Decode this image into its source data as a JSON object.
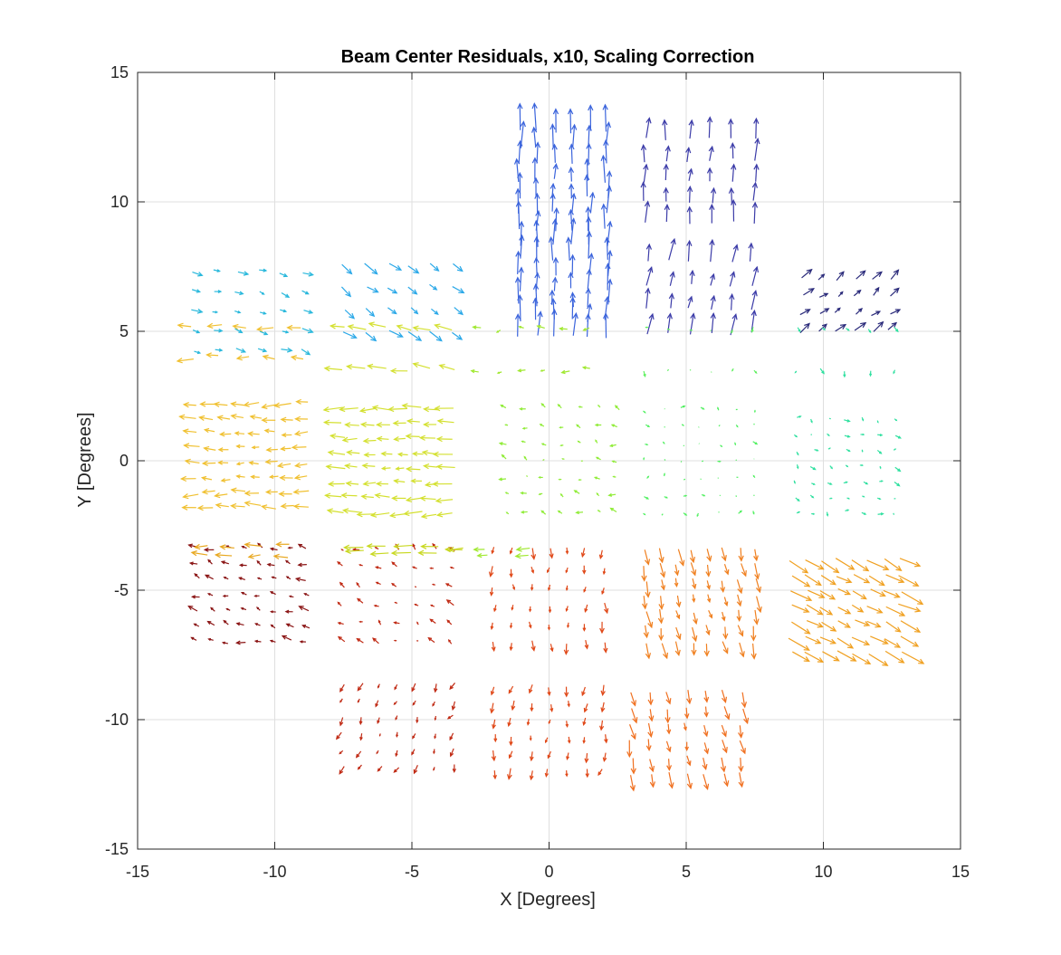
{
  "chart_data": {
    "type": "quiver",
    "title": "Beam Center Residuals, x10, Scaling Correction",
    "xlabel": "X [Degrees]",
    "ylabel": "Y [Degrees]",
    "xlim": [
      -15,
      15
    ],
    "ylim": [
      -15,
      15
    ],
    "xticks": [
      -15,
      -10,
      -5,
      0,
      5,
      10,
      15
    ],
    "yticks": [
      -15,
      -10,
      -5,
      0,
      5,
      10,
      15
    ],
    "xtick_labels": [
      "-15",
      "-10",
      "-5",
      "0",
      "5",
      "10",
      "15"
    ],
    "ytick_labels": [
      "-15",
      "-10",
      "-5",
      "0",
      "5",
      "10",
      "15"
    ],
    "grid": true,
    "scale_factor": 10,
    "beams": [
      {
        "center": [
          0.5,
          10.5
        ],
        "half": [
          1.6,
          2.2
        ],
        "color": "#3b64dc",
        "u": 0.02,
        "v": 0.9,
        "n": 6
      },
      {
        "center": [
          5.5,
          10.8
        ],
        "half": [
          2.0,
          1.6
        ],
        "color": "#3c3ca8",
        "u": 0.05,
        "v": 0.7,
        "n": 6
      },
      {
        "center": [
          0.5,
          6.3
        ],
        "half": [
          1.6,
          1.5
        ],
        "color": "#3b64dc",
        "u": 0.03,
        "v": 0.9,
        "n": 6
      },
      {
        "center": [
          5.5,
          6.3
        ],
        "half": [
          1.9,
          1.4
        ],
        "color": "#3c3ca8",
        "u": 0.12,
        "v": 0.7,
        "n": 6
      },
      {
        "center": [
          10.8,
          6.0
        ],
        "half": [
          1.6,
          1.0
        ],
        "color": "#2a2a7a",
        "u": 0.3,
        "v": 0.25,
        "n": 6
      },
      {
        "center": [
          -11.0,
          5.8
        ],
        "half": [
          2.0,
          1.5
        ],
        "color": "#29b8dc",
        "u": 0.3,
        "v": -0.1,
        "n": 6
      },
      {
        "center": [
          -5.5,
          6.3
        ],
        "half": [
          2.0,
          1.3
        ],
        "color": "#2aa8e8",
        "u": 0.4,
        "v": -0.3,
        "n": 6
      },
      {
        "center": [
          -11.0,
          4.6
        ],
        "half": [
          2.0,
          0.6
        ],
        "color": "#f0c030",
        "u": -0.5,
        "v": 0.0,
        "n": 5
      },
      {
        "center": [
          -5.5,
          4.3
        ],
        "half": [
          2.0,
          0.8
        ],
        "color": "#d4e030",
        "u": -0.6,
        "v": 0.1,
        "n": 6
      },
      {
        "center": [
          -0.5,
          4.3
        ],
        "half": [
          2.0,
          0.8
        ],
        "color": "#a0e830",
        "u": -0.2,
        "v": 0.0,
        "n": 6
      },
      {
        "center": [
          5.5,
          4.3
        ],
        "half": [
          2.0,
          0.8
        ],
        "color": "#60f060",
        "u": 0.0,
        "v": -0.1,
        "n": 6
      },
      {
        "center": [
          10.8,
          4.3
        ],
        "half": [
          1.8,
          0.8
        ],
        "color": "#30e0a0",
        "u": 0.05,
        "v": -0.1,
        "n": 5
      },
      {
        "center": [
          -10.8,
          0.2
        ],
        "half": [
          2.0,
          2.0
        ],
        "color": "#f0c030",
        "u": -0.5,
        "v": 0.0,
        "n": 8
      },
      {
        "center": [
          -5.5,
          0.0
        ],
        "half": [
          2.0,
          2.0
        ],
        "color": "#d4e030",
        "u": -0.6,
        "v": 0.0,
        "n": 8
      },
      {
        "center": [
          0.5,
          0.0
        ],
        "half": [
          2.0,
          2.0
        ],
        "color": "#90ec38",
        "u": -0.15,
        "v": 0.05,
        "n": 7
      },
      {
        "center": [
          5.5,
          0.0
        ],
        "half": [
          2.0,
          2.0
        ],
        "color": "#50f060",
        "u": 0.05,
        "v": 0.0,
        "n": 7
      },
      {
        "center": [
          10.8,
          -0.2
        ],
        "half": [
          1.8,
          1.8
        ],
        "color": "#30e0a0",
        "u": 0.12,
        "v": -0.05,
        "n": 7
      },
      {
        "center": [
          -10.8,
          -5.2
        ],
        "half": [
          2.0,
          1.8
        ],
        "color": "#8a1414",
        "u": -0.25,
        "v": 0.08,
        "n": 8
      },
      {
        "center": [
          -5.5,
          -5.2
        ],
        "half": [
          2.0,
          1.8
        ],
        "color": "#c02a14",
        "u": -0.15,
        "v": 0.1,
        "n": 7
      },
      {
        "center": [
          0.0,
          -5.2
        ],
        "half": [
          2.0,
          1.8
        ],
        "color": "#e04818",
        "u": 0.0,
        "v": -0.3,
        "n": 7
      },
      {
        "center": [
          5.5,
          -5.2
        ],
        "half": [
          2.0,
          1.8
        ],
        "color": "#f08020",
        "u": 0.1,
        "v": -0.5,
        "n": 8
      },
      {
        "center": [
          10.8,
          -5.6
        ],
        "half": [
          2.0,
          1.8
        ],
        "color": "#f0a020",
        "u": 0.7,
        "v": -0.35,
        "n": 8
      },
      {
        "center": [
          -11.0,
          -3.5
        ],
        "half": [
          1.5,
          0.2
        ],
        "color": "#e8a820",
        "u": -0.5,
        "v": 0.0,
        "n": 4
      },
      {
        "center": [
          -5.0,
          -3.4
        ],
        "half": [
          1.8,
          0.1
        ],
        "color": "#c8d820",
        "u": -0.6,
        "v": 0.0,
        "n": 5
      },
      {
        "center": [
          -1.5,
          -3.5
        ],
        "half": [
          0.8,
          0.1
        ],
        "color": "#a0e830",
        "u": -0.4,
        "v": 0.0,
        "n": 2
      },
      {
        "center": [
          -5.5,
          -10.2
        ],
        "half": [
          2.0,
          1.6
        ],
        "color": "#c02a14",
        "u": -0.1,
        "v": -0.2,
        "n": 7
      },
      {
        "center": [
          0.0,
          -10.3
        ],
        "half": [
          2.0,
          1.6
        ],
        "color": "#e04818",
        "u": -0.05,
        "v": -0.3,
        "n": 7
      },
      {
        "center": [
          5.0,
          -10.5
        ],
        "half": [
          2.0,
          1.6
        ],
        "color": "#f07020",
        "u": 0.1,
        "v": -0.5,
        "n": 7
      }
    ]
  }
}
